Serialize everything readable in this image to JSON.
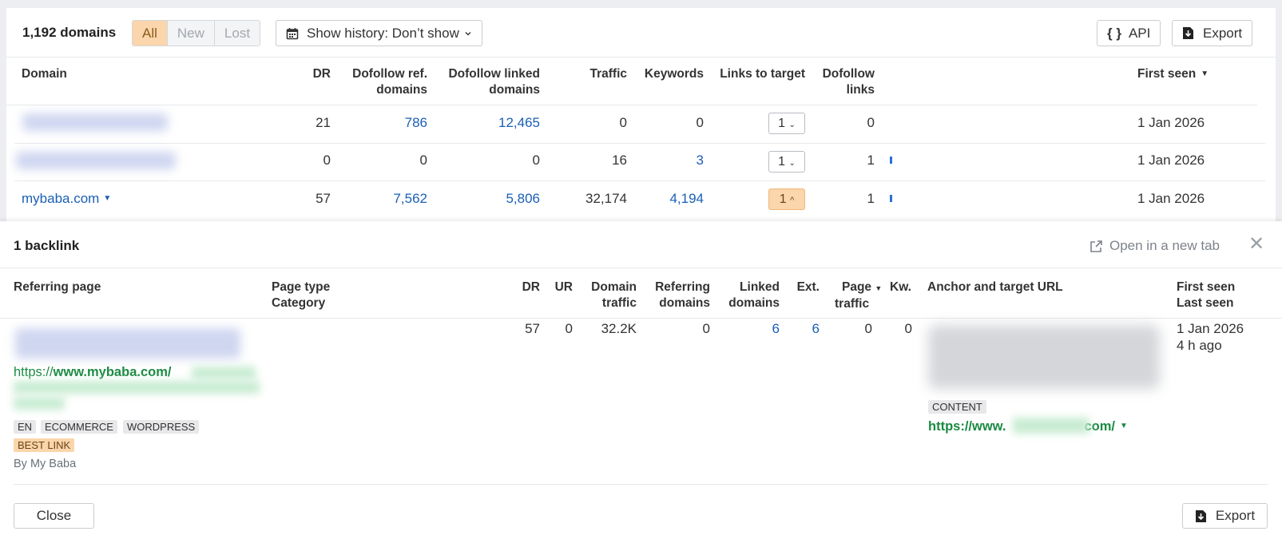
{
  "toolbar": {
    "count": "1,192 domains",
    "filters": [
      "All",
      "New",
      "Lost"
    ],
    "history": "Show history: Don’t show",
    "api": "API",
    "export": "Export"
  },
  "table": {
    "headers": {
      "domain": "Domain",
      "dr": "DR",
      "ref1": "Dofollow ref.",
      "ref2": "domains",
      "linked1": "Dofollow linked",
      "linked2": "domains",
      "traffic": "Traffic",
      "keywords": "Keywords",
      "links_target": "Links to target",
      "dofollow1": "Dofollow",
      "dofollow2": "links",
      "first_seen": "First seen"
    },
    "rows": [
      {
        "domain": "",
        "dr": "21",
        "ref": "786",
        "linked": "12,465",
        "traffic": "0",
        "keywords": "0",
        "links": "1",
        "dofollow": "0",
        "first_seen": "1 Jan 2026"
      },
      {
        "domain": "",
        "dr": "0",
        "ref": "0",
        "linked": "0",
        "traffic": "16",
        "keywords": "3",
        "links": "1",
        "dofollow": "1",
        "first_seen": "1 Jan 2026"
      },
      {
        "domain": "mybaba.com",
        "dr": "57",
        "ref": "7,562",
        "linked": "5,806",
        "traffic": "32,174",
        "keywords": "4,194",
        "links": "1",
        "dofollow": "1",
        "first_seen": "1 Jan 2026"
      }
    ]
  },
  "backlinks": {
    "title": "1 backlink",
    "open_new_tab": "Open in a new tab",
    "headers": {
      "ref_page": "Referring page",
      "page_type": "Page type",
      "category": "Category",
      "dr": "DR",
      "ur": "UR",
      "dt1": "Domain",
      "dt2": "traffic",
      "rd1": "Referring",
      "rd2": "domains",
      "ld1": "Linked",
      "ld2": "domains",
      "ext": "Ext.",
      "pt1": "Page",
      "pt2": "traffic",
      "kw": "Kw.",
      "anchor": "Anchor and target URL",
      "fs": "First seen",
      "ls": "Last seen"
    },
    "row": {
      "url_prefix": "https://",
      "url_domain": "www.mybaba.com/",
      "tags": [
        "EN",
        "ECOMMERCE",
        "WORDPRESS"
      ],
      "best": "BEST LINK",
      "by": "By My Baba",
      "dr": "57",
      "ur": "0",
      "domain_traffic": "32.2K",
      "ref_domains": "0",
      "linked_domains": "6",
      "ext": "6",
      "page_traffic": "0",
      "kw": "0",
      "content_tag": "CONTENT",
      "target_prefix": "https://www.",
      "target_suffix": "com/",
      "first_seen": "1 Jan 2026",
      "last_seen": "4 h ago"
    },
    "close": "Close",
    "export": "Export"
  }
}
